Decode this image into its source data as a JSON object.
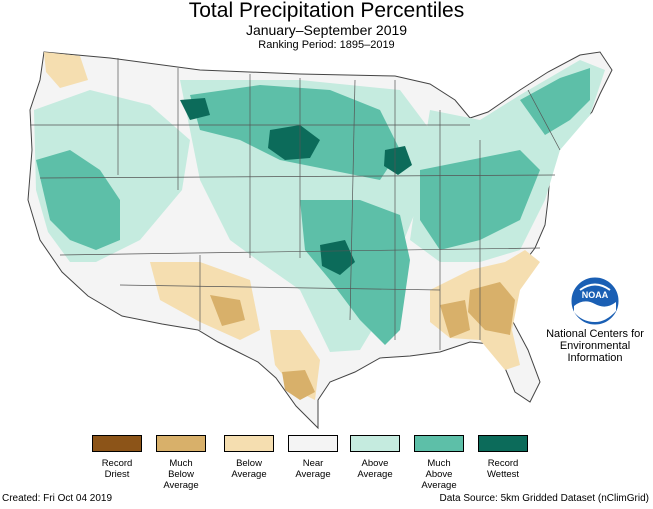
{
  "map": {
    "title": "Total Precipitation Percentiles",
    "subtitle": "January–September 2019",
    "ranking_period": "Ranking Period: 1895–2019"
  },
  "colors": {
    "record_driest": "#8c5418",
    "much_below": "#d8b06a",
    "below": "#f5deb0",
    "near": "#f4f4f4",
    "above": "#c5ebdf",
    "much_above": "#5dbfa8",
    "record_wettest": "#0c6b5a",
    "state_border": "#555555",
    "noaa_blue": "#1a5fb4"
  },
  "legend": [
    {
      "key": "record_driest",
      "line1": "Record",
      "line2": "Driest",
      "line3": ""
    },
    {
      "key": "much_below",
      "line1": "Much",
      "line2": "Below",
      "line3": "Average"
    },
    {
      "key": "below",
      "line1": "Below",
      "line2": "Average",
      "line3": ""
    },
    {
      "key": "near",
      "line1": "Near",
      "line2": "Average",
      "line3": ""
    },
    {
      "key": "above",
      "line1": "Above",
      "line2": "Average",
      "line3": ""
    },
    {
      "key": "much_above",
      "line1": "Much",
      "line2": "Above",
      "line3": "Average"
    },
    {
      "key": "record_wettest",
      "line1": "Record",
      "line2": "Wettest",
      "line3": ""
    }
  ],
  "logo": {
    "text": "NOAA",
    "icon": "noaa-logo-icon"
  },
  "agency": {
    "line1": "National Centers for",
    "line2": "Environmental",
    "line3": "Information"
  },
  "footer": {
    "created": "Created: Fri Oct 04 2019",
    "source": "Data Source: 5km Gridded Dataset (nClimGrid)"
  }
}
